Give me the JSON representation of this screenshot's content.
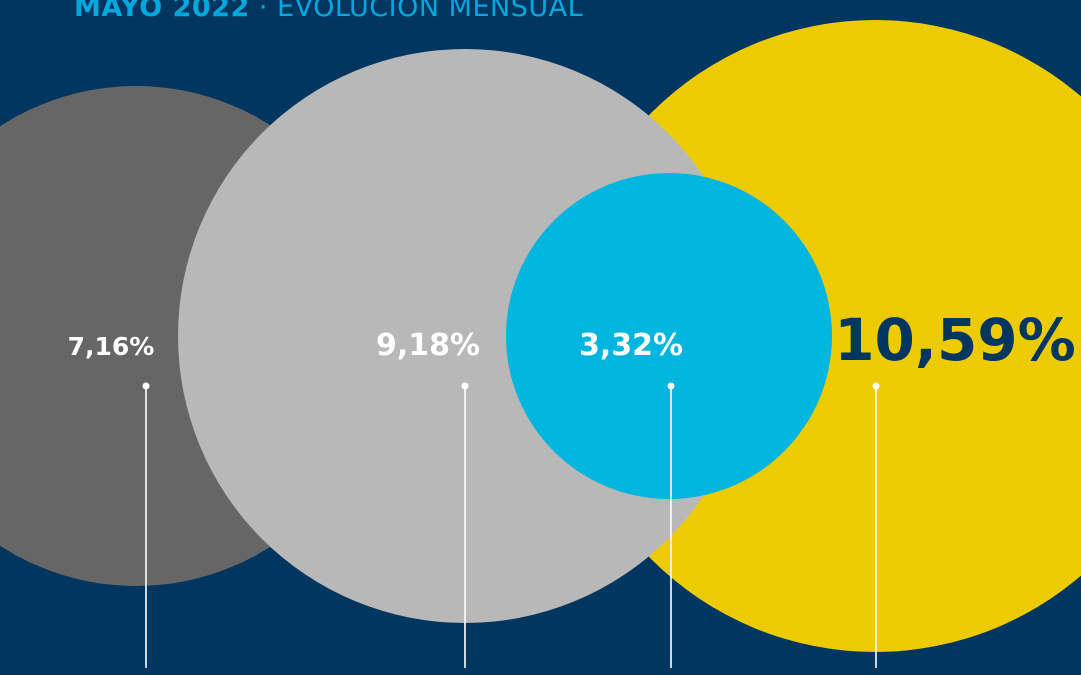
{
  "header": {
    "title_bold": "MAYO 2022",
    "title_separator": " · ",
    "title_light": "EVOLUCIÓN MENSUAL"
  },
  "colors": {
    "background": "#003660",
    "accent": "#00a9dd",
    "leader_line": "#ffffff",
    "big_value_text": "#003660"
  },
  "chart_data": {
    "type": "bubble",
    "title": "MAYO 2022 · EVOLUCIÓN MENSUAL",
    "series": [
      {
        "label": "7,16%",
        "value": 7.16,
        "color": "#666666",
        "label_color": "#ffffff"
      },
      {
        "label": "9,18%",
        "value": 9.18,
        "color": "#b8b8b8",
        "label_color": "#ffffff"
      },
      {
        "label": "3,32%",
        "value": 3.32,
        "color": "#00b5de",
        "label_color": "#ffffff"
      },
      {
        "label": "10,59%",
        "value": 10.59,
        "color": "#eccb00",
        "label_color": "#003660"
      }
    ]
  }
}
